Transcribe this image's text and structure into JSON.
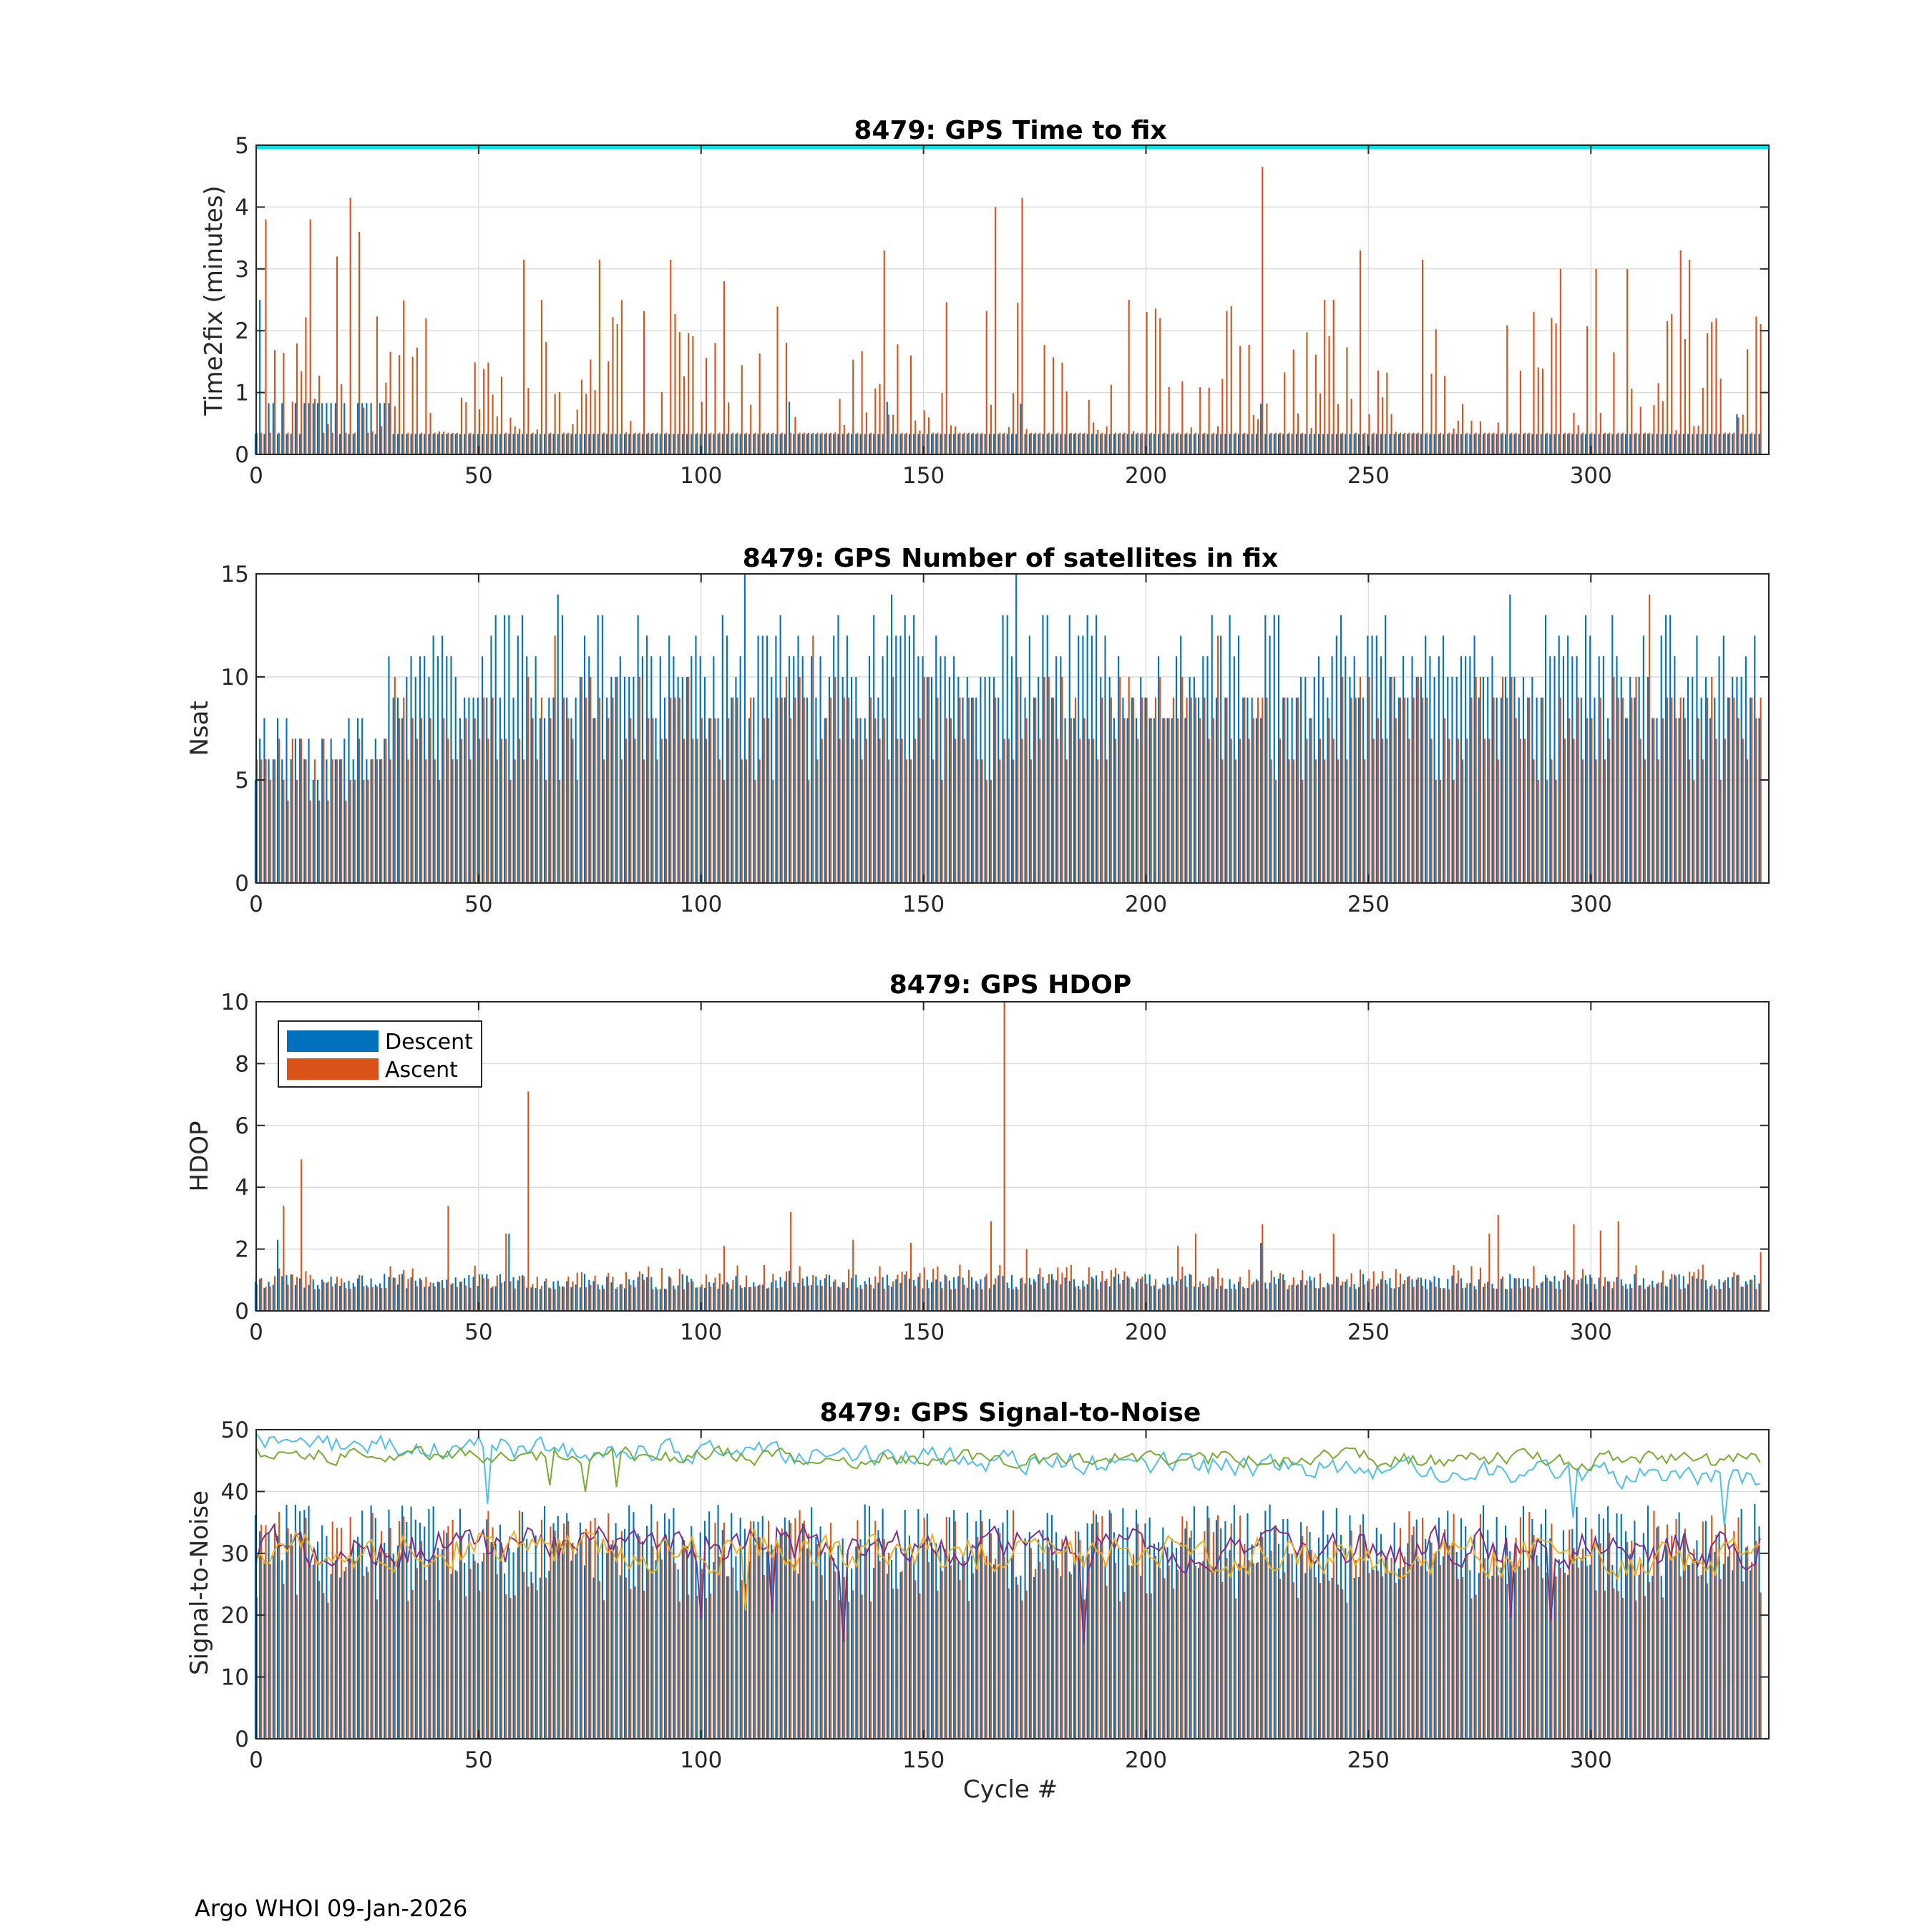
{
  "footer": "Argo WHOI 09-Jan-2026",
  "colors": {
    "descent": "#0072BD",
    "ascent": "#D95319",
    "grid": "#dcdcdc",
    "axis": "#262626"
  },
  "chart_data": [
    {
      "type": "bar",
      "title": "8479: GPS Time to fix",
      "ylabel": "Time2fix (minutes)",
      "xlabel": "",
      "xlim": [
        0,
        340
      ],
      "ylim": [
        0,
        5
      ],
      "xticks": [
        0,
        50,
        100,
        150,
        200,
        250,
        300
      ],
      "yticks": [
        0,
        1,
        2,
        3,
        4,
        5
      ],
      "cycles": [
        0,
        338
      ],
      "reference_line": {
        "y": 5,
        "color": "#00E5E5",
        "label": ""
      },
      "series": [
        {
          "name": "Descent",
          "color": "#0072BD",
          "baseline": 0.33,
          "alt": 0.83,
          "alt_range": [
            0,
            30
          ],
          "spikes": [
            [
              1,
              2.5
            ],
            [
              120,
              0.85
            ],
            [
              142,
              0.85
            ],
            [
              172,
              0.82
            ],
            [
              226,
              0.82
            ],
            [
              333,
              0.65
            ]
          ]
        },
        {
          "name": "Ascent",
          "color": "#D95319",
          "base_min": 0.35,
          "base_max": 2.5,
          "spikes": [
            [
              2,
              3.8
            ],
            [
              12,
              3.8
            ],
            [
              18,
              3.2
            ],
            [
              21,
              4.15
            ],
            [
              23,
              3.6
            ],
            [
              38,
              2.2
            ],
            [
              60,
              3.15
            ],
            [
              77,
              3.15
            ],
            [
              93,
              3.15
            ],
            [
              105,
              2.8
            ],
            [
              141,
              3.3
            ],
            [
              166,
              4.0
            ],
            [
              172,
              4.15
            ],
            [
              196,
              2.5
            ],
            [
              226,
              4.65
            ],
            [
              240,
              2.5
            ],
            [
              248,
              3.3
            ],
            [
              262,
              3.15
            ],
            [
              293,
              3.0
            ],
            [
              301,
              3.0
            ],
            [
              308,
              3.0
            ],
            [
              320,
              3.3
            ],
            [
              322,
              3.15
            ]
          ]
        }
      ]
    },
    {
      "type": "bar",
      "title": "8479: GPS Number of satellites in fix",
      "ylabel": "Nsat",
      "xlabel": "",
      "xlim": [
        0,
        340
      ],
      "ylim": [
        0,
        15
      ],
      "xticks": [
        0,
        50,
        100,
        150,
        200,
        250,
        300
      ],
      "yticks": [
        0,
        5,
        10,
        15
      ],
      "cycles": [
        0,
        338
      ],
      "series": [
        {
          "name": "Descent",
          "color": "#0072BD",
          "early_range": [
            5,
            8
          ],
          "early_until": 30,
          "range": [
            8,
            13
          ],
          "spikes": [
            [
              110,
              15
            ],
            [
              171,
              15
            ],
            [
              68,
              14
            ],
            [
              143,
              14
            ],
            [
              215,
              13
            ],
            [
              282,
              14
            ]
          ]
        },
        {
          "name": "Ascent",
          "color": "#D95319",
          "early_range": [
            4,
            7
          ],
          "early_until": 30,
          "range": [
            5,
            10
          ],
          "spikes": [
            [
              313,
              14
            ],
            [
              216,
              12
            ],
            [
              67,
              12
            ],
            [
              125,
              12
            ]
          ]
        }
      ]
    },
    {
      "type": "bar",
      "title": "8479: GPS HDOP",
      "ylabel": "HDOP",
      "xlabel": "",
      "xlim": [
        0,
        340
      ],
      "ylim": [
        0,
        10
      ],
      "xticks": [
        0,
        50,
        100,
        150,
        200,
        250,
        300
      ],
      "yticks": [
        0,
        2,
        4,
        6,
        8,
        10
      ],
      "cycles": [
        0,
        338
      ],
      "legend": {
        "position": "top-left",
        "entries": [
          "Descent",
          "Ascent"
        ]
      },
      "series": [
        {
          "name": "Descent",
          "color": "#0072BD",
          "range": [
            0.7,
            1.2
          ],
          "spikes": [
            [
              5,
              2.3
            ],
            [
              57,
              2.5
            ],
            [
              226,
              2.2
            ],
            [
              120,
              1.3
            ]
          ]
        },
        {
          "name": "Ascent",
          "color": "#D95319",
          "range": [
            0.7,
            1.5
          ],
          "spikes": [
            [
              10,
              4.9
            ],
            [
              6,
              3.4
            ],
            [
              43,
              3.4
            ],
            [
              61,
              7.1
            ],
            [
              56,
              2.5
            ],
            [
              168,
              10.0
            ],
            [
              105,
              2.1
            ],
            [
              120,
              3.2
            ],
            [
              134,
              2.3
            ],
            [
              147,
              2.2
            ],
            [
              165,
              2.9
            ],
            [
              173,
              2.0
            ],
            [
              207,
              2.1
            ],
            [
              211,
              2.5
            ],
            [
              226,
              2.8
            ],
            [
              242,
              2.5
            ],
            [
              277,
              2.5
            ],
            [
              279,
              3.1
            ],
            [
              296,
              2.8
            ],
            [
              306,
              2.9
            ],
            [
              302,
              2.6
            ],
            [
              338,
              1.9
            ]
          ]
        }
      ]
    },
    {
      "type": "line",
      "title": "8479: GPS Signal-to-Noise",
      "ylabel": "Signal-to-Noise",
      "xlabel": "Cycle #",
      "xlim": [
        0,
        340
      ],
      "ylim": [
        0,
        50
      ],
      "xticks": [
        0,
        50,
        100,
        150,
        200,
        250,
        300
      ],
      "yticks": [
        0,
        10,
        20,
        30,
        40,
        50
      ],
      "cycles": [
        0,
        338
      ],
      "bars": {
        "descent_range": [
          26,
          38
        ],
        "ascent_range": [
          22,
          37
        ]
      },
      "series": [
        {
          "name": "",
          "color": "#4DBEEE",
          "start": 48,
          "end": 42,
          "noise": 3.0
        },
        {
          "name": "",
          "color": "#77AC30",
          "start": 46,
          "end": 45,
          "noise": 2.2
        },
        {
          "name": "",
          "color": "#7E2F8E",
          "start": 31,
          "end": 31,
          "noise": 5.0
        },
        {
          "name": "",
          "color": "#EDB120",
          "start": 31,
          "end": 29,
          "noise": 5.0
        }
      ]
    }
  ]
}
